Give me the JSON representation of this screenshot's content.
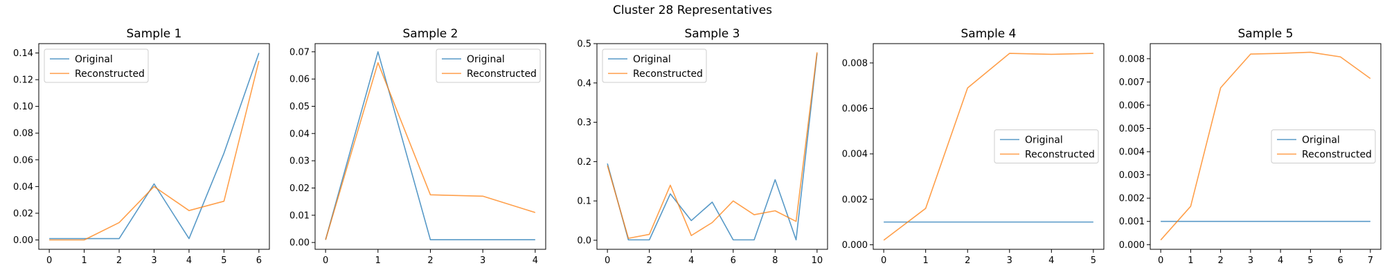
{
  "figure": {
    "title": "Cluster 28 Representatives"
  },
  "colors": {
    "original": "#1f77b4",
    "reconstructed": "#ff7f0e"
  },
  "chart_data": [
    {
      "type": "line",
      "title": "Sample 1",
      "x": [
        0,
        1,
        2,
        3,
        4,
        5,
        6
      ],
      "xticks": [
        0,
        1,
        2,
        3,
        4,
        5,
        6
      ],
      "yticks": [
        0.0,
        0.02,
        0.04,
        0.06,
        0.08,
        0.1,
        0.12,
        0.14
      ],
      "ytick_labels": [
        "0.00",
        "0.02",
        "0.04",
        "0.06",
        "0.08",
        "0.10",
        "0.12",
        "0.14"
      ],
      "ylim": [
        -0.007,
        0.147
      ],
      "legend": "upper left",
      "series": [
        {
          "name": "Original",
          "values": [
            0.001,
            0.001,
            0.001,
            0.042,
            0.001,
            0.065,
            0.14
          ]
        },
        {
          "name": "Reconstructed",
          "values": [
            0.0,
            0.0,
            0.013,
            0.04,
            0.022,
            0.029,
            0.134
          ]
        }
      ]
    },
    {
      "type": "line",
      "title": "Sample 2",
      "x": [
        0,
        1,
        2,
        3,
        4
      ],
      "xticks": [
        0,
        1,
        2,
        3,
        4
      ],
      "yticks": [
        0.0,
        0.01,
        0.02,
        0.03,
        0.04,
        0.05,
        0.06,
        0.07
      ],
      "ytick_labels": [
        "0.00",
        "0.01",
        "0.02",
        "0.03",
        "0.04",
        "0.05",
        "0.06",
        "0.07"
      ],
      "ylim": [
        -0.0025,
        0.073
      ],
      "legend": "upper right",
      "series": [
        {
          "name": "Original",
          "values": [
            0.001,
            0.07,
            0.001,
            0.001,
            0.001
          ]
        },
        {
          "name": "Reconstructed",
          "values": [
            0.001,
            0.066,
            0.0175,
            0.017,
            0.011
          ]
        }
      ]
    },
    {
      "type": "line",
      "title": "Sample 3",
      "x": [
        0,
        1,
        2,
        3,
        4,
        5,
        6,
        7,
        8,
        9,
        10
      ],
      "xticks": [
        0,
        2,
        4,
        6,
        8,
        10
      ],
      "yticks": [
        0.0,
        0.1,
        0.2,
        0.3,
        0.4,
        0.5
      ],
      "ytick_labels": [
        "0.0",
        "0.1",
        "0.2",
        "0.3",
        "0.4",
        "0.5"
      ],
      "ylim": [
        -0.023,
        0.5
      ],
      "legend": "upper left",
      "series": [
        {
          "name": "Original",
          "values": [
            0.195,
            0.001,
            0.001,
            0.118,
            0.05,
            0.097,
            0.001,
            0.001,
            0.154,
            0.001,
            0.475
          ]
        },
        {
          "name": "Reconstructed",
          "values": [
            0.19,
            0.005,
            0.015,
            0.14,
            0.012,
            0.045,
            0.1,
            0.065,
            0.075,
            0.048,
            0.478
          ]
        }
      ]
    },
    {
      "type": "line",
      "title": "Sample 4",
      "x": [
        0,
        1,
        2,
        3,
        4,
        5
      ],
      "xticks": [
        0,
        1,
        2,
        3,
        4,
        5
      ],
      "yticks": [
        0.0,
        0.002,
        0.004,
        0.006,
        0.008
      ],
      "ytick_labels": [
        "0.000",
        "0.002",
        "0.004",
        "0.006",
        "0.008"
      ],
      "ylim": [
        -0.0002,
        0.00885
      ],
      "legend": "center right",
      "series": [
        {
          "name": "Original",
          "values": [
            0.001,
            0.001,
            0.001,
            0.001,
            0.001,
            0.001
          ]
        },
        {
          "name": "Reconstructed",
          "values": [
            0.0002,
            0.0016,
            0.0069,
            0.00842,
            0.00838,
            0.00842
          ]
        }
      ]
    },
    {
      "type": "line",
      "title": "Sample 5",
      "x": [
        0,
        1,
        2,
        3,
        4,
        5,
        6,
        7
      ],
      "xticks": [
        0,
        1,
        2,
        3,
        4,
        5,
        6,
        7
      ],
      "yticks": [
        0.0,
        0.001,
        0.002,
        0.003,
        0.004,
        0.005,
        0.006,
        0.007,
        0.008
      ],
      "ytick_labels": [
        "0.000",
        "0.001",
        "0.002",
        "0.003",
        "0.004",
        "0.005",
        "0.006",
        "0.007",
        "0.008"
      ],
      "ylim": [
        -0.0002,
        0.00865
      ],
      "legend": "center right",
      "series": [
        {
          "name": "Original",
          "values": [
            0.001,
            0.001,
            0.001,
            0.001,
            0.001,
            0.001,
            0.001,
            0.001
          ]
        },
        {
          "name": "Reconstructed",
          "values": [
            0.0002,
            0.00165,
            0.00675,
            0.0082,
            0.00823,
            0.00828,
            0.00808,
            0.00715
          ]
        }
      ]
    }
  ]
}
